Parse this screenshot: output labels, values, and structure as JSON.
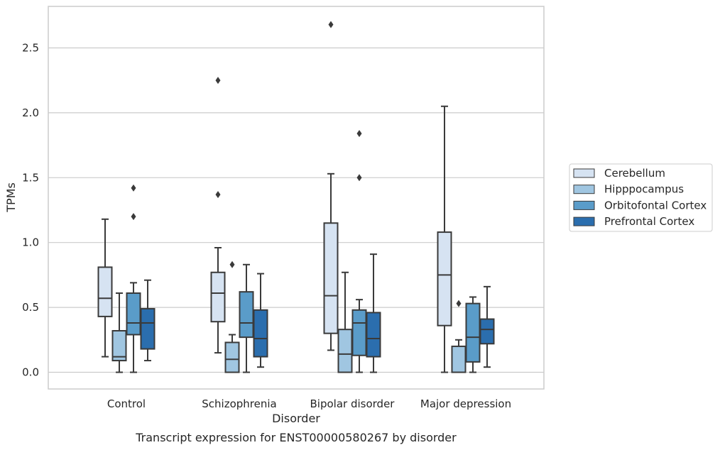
{
  "chart_data": {
    "type": "box",
    "caption": "Transcript expression for ENST00000580267 by disorder",
    "xlabel": "Disorder",
    "ylabel": "TPMs",
    "ylim": [
      -0.13,
      2.8
    ],
    "yticks": [
      0.0,
      0.5,
      1.0,
      1.5,
      2.0,
      2.5
    ],
    "ytick_labels": [
      "0.0",
      "0.5",
      "1.0",
      "1.5",
      "2.0",
      "2.5"
    ],
    "grid": "horizontal",
    "legend_position": "outside-right",
    "categories": [
      "Control",
      "Schizophrenia",
      "Bipolar disorder",
      "Major depression"
    ],
    "series": [
      {
        "name": "Cerebellum",
        "color": "#d6e3f2",
        "boxes": [
          {
            "whislo": 0.12,
            "q1": 0.43,
            "med": 0.57,
            "q3": 0.81,
            "whishi": 1.18,
            "fliers": []
          },
          {
            "whislo": 0.15,
            "q1": 0.39,
            "med": 0.61,
            "q3": 0.77,
            "whishi": 0.96,
            "fliers": [
              1.37,
              2.25
            ]
          },
          {
            "whislo": 0.17,
            "q1": 0.3,
            "med": 0.59,
            "q3": 1.15,
            "whishi": 1.53,
            "fliers": [
              2.68
            ]
          },
          {
            "whislo": 0.0,
            "q1": 0.36,
            "med": 0.75,
            "q3": 1.08,
            "whishi": 2.05,
            "fliers": []
          }
        ]
      },
      {
        "name": "Hipppocampus",
        "color": "#a0c6e1",
        "boxes": [
          {
            "whislo": 0.0,
            "q1": 0.09,
            "med": 0.12,
            "q3": 0.32,
            "whishi": 0.61,
            "fliers": []
          },
          {
            "whislo": 0.0,
            "q1": 0.0,
            "med": 0.1,
            "q3": 0.23,
            "whishi": 0.29,
            "fliers": [
              0.83
            ]
          },
          {
            "whislo": 0.0,
            "q1": 0.0,
            "med": 0.14,
            "q3": 0.33,
            "whishi": 0.77,
            "fliers": []
          },
          {
            "whislo": 0.0,
            "q1": 0.0,
            "med": 0.0,
            "q3": 0.2,
            "whishi": 0.25,
            "fliers": [
              0.53
            ]
          }
        ]
      },
      {
        "name": "Orbitofontal Cortex",
        "color": "#5a9cc9",
        "boxes": [
          {
            "whislo": 0.0,
            "q1": 0.29,
            "med": 0.38,
            "q3": 0.61,
            "whishi": 0.69,
            "fliers": [
              1.2,
              1.42
            ]
          },
          {
            "whislo": 0.0,
            "q1": 0.27,
            "med": 0.38,
            "q3": 0.62,
            "whishi": 0.83,
            "fliers": []
          },
          {
            "whislo": 0.0,
            "q1": 0.13,
            "med": 0.38,
            "q3": 0.48,
            "whishi": 0.56,
            "fliers": [
              1.5,
              1.84
            ]
          },
          {
            "whislo": 0.0,
            "q1": 0.08,
            "med": 0.27,
            "q3": 0.53,
            "whishi": 0.58,
            "fliers": []
          }
        ]
      },
      {
        "name": "Prefrontal Cortex",
        "color": "#2b6eae",
        "boxes": [
          {
            "whislo": 0.09,
            "q1": 0.18,
            "med": 0.38,
            "q3": 0.49,
            "whishi": 0.71,
            "fliers": []
          },
          {
            "whislo": 0.04,
            "q1": 0.12,
            "med": 0.26,
            "q3": 0.48,
            "whishi": 0.76,
            "fliers": []
          },
          {
            "whislo": 0.0,
            "q1": 0.12,
            "med": 0.26,
            "q3": 0.46,
            "whishi": 0.91,
            "fliers": []
          },
          {
            "whislo": 0.04,
            "q1": 0.22,
            "med": 0.33,
            "q3": 0.41,
            "whishi": 0.66,
            "fliers": []
          }
        ]
      }
    ]
  },
  "colors": {
    "edge": "#3a3a3a",
    "grid": "#cccccc",
    "frame": "#cccccc",
    "text": "#262626"
  }
}
